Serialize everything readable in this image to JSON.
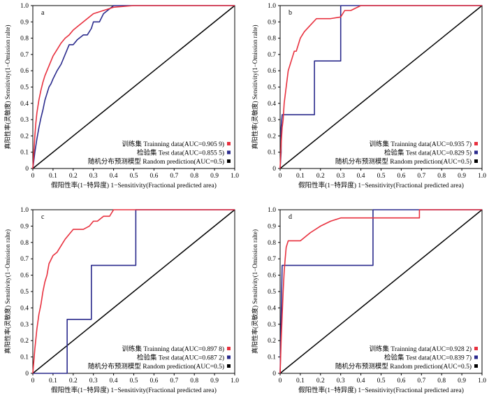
{
  "figure": {
    "ylabel": "真阳性率(灵敏度) Sensitivity(1−Omission ralte)",
    "xlabel": "假阳性率(1−特异度) 1−Sensitivity(Fractional predicted area)",
    "colors": {
      "train": "#e8303e",
      "test": "#2a2a8c",
      "random": "#000000"
    }
  },
  "chart_data": [
    {
      "type": "line",
      "panel_label": "a",
      "xlim": [
        0,
        1
      ],
      "ylim": [
        0,
        1
      ],
      "xticks": [
        "0",
        "0.1",
        "0.2",
        "0.3",
        "0.4",
        "0.5",
        "0.6",
        "0.7",
        "0.8",
        "0.9",
        "1.0"
      ],
      "yticks": [
        "0",
        "0.1",
        "0.2",
        "0.3",
        "0.4",
        "0.5",
        "0.6",
        "0.7",
        "0.8",
        "0.9",
        "1.0"
      ],
      "xlabel": "假阳性率(1−特异度) 1−Sensitivity(Fractional predicted area)",
      "ylabel": "真阳性率(灵敏度) Sensitivity(1−Omission ralte)",
      "legend_position": "bottom-right",
      "series": [
        {
          "name": "训练集 Trainning data(AUC=0.905 9)",
          "x": [
            0,
            0.005,
            0.01,
            0.015,
            0.02,
            0.03,
            0.04,
            0.05,
            0.06,
            0.08,
            0.1,
            0.12,
            0.14,
            0.16,
            0.18,
            0.2,
            0.22,
            0.25,
            0.28,
            0.3,
            0.35,
            0.4,
            0.5,
            0.7,
            1.0
          ],
          "y": [
            0,
            0.1,
            0.2,
            0.28,
            0.34,
            0.42,
            0.48,
            0.53,
            0.57,
            0.63,
            0.69,
            0.73,
            0.77,
            0.8,
            0.82,
            0.85,
            0.87,
            0.9,
            0.93,
            0.95,
            0.97,
            0.99,
            1.0,
            1.0,
            1.0
          ]
        },
        {
          "name": "检验集 Test data(AUC=0.855 5)",
          "x": [
            0,
            0.01,
            0.02,
            0.03,
            0.04,
            0.05,
            0.06,
            0.07,
            0.08,
            0.09,
            0.1,
            0.12,
            0.14,
            0.16,
            0.18,
            0.2,
            0.22,
            0.25,
            0.27,
            0.29,
            0.3,
            0.33,
            0.35,
            0.37,
            0.4,
            1.0
          ],
          "y": [
            0,
            0.1,
            0.18,
            0.25,
            0.31,
            0.36,
            0.42,
            0.46,
            0.5,
            0.52,
            0.55,
            0.6,
            0.64,
            0.7,
            0.76,
            0.76,
            0.79,
            0.82,
            0.82,
            0.86,
            0.9,
            0.9,
            0.95,
            0.97,
            1.0,
            1.0
          ]
        },
        {
          "name": "随机分布预测模型 Random prediction(AUC=0.5)",
          "x": [
            0,
            1
          ],
          "y": [
            0,
            1
          ]
        }
      ]
    },
    {
      "type": "line",
      "panel_label": "b",
      "xlim": [
        0,
        1
      ],
      "ylim": [
        0,
        1
      ],
      "xticks": [
        "0",
        "0.1",
        "0.2",
        "0.3",
        "0.4",
        "0.5",
        "0.6",
        "0.7",
        "0.8",
        "0.9",
        "1.0"
      ],
      "yticks": [
        "0",
        "0.1",
        "0.2",
        "0.3",
        "0.4",
        "0.5",
        "0.6",
        "0.7",
        "0.8",
        "0.9",
        "1.0"
      ],
      "xlabel": "假阳性率(1−特异度) 1−Sensitivity(Fractional predicted area)",
      "ylabel": "真阳性率(灵敏度) Sensitivity(1−Omission ralte)",
      "legend_position": "bottom-right",
      "series": [
        {
          "name": "训练集 Trainning data(AUC=0.935 7)",
          "x": [
            0,
            0.005,
            0.01,
            0.015,
            0.02,
            0.025,
            0.03,
            0.035,
            0.04,
            0.05,
            0.06,
            0.07,
            0.08,
            0.1,
            0.12,
            0.15,
            0.18,
            0.2,
            0.25,
            0.3,
            0.32,
            0.35,
            0.4,
            1.0
          ],
          "y": [
            0,
            0.15,
            0.25,
            0.3,
            0.4,
            0.45,
            0.5,
            0.55,
            0.6,
            0.64,
            0.68,
            0.72,
            0.72,
            0.8,
            0.84,
            0.88,
            0.92,
            0.92,
            0.92,
            0.93,
            0.97,
            0.97,
            1.0,
            1.0
          ]
        },
        {
          "name": "检验集 Test data(AUC=0.829 5)",
          "x": [
            0,
            0.005,
            0.005,
            0.01,
            0.01,
            0.17,
            0.17,
            0.3,
            0.3,
            0.4,
            1.0
          ],
          "y": [
            0,
            0.1,
            0.25,
            0.33,
            0.33,
            0.33,
            0.66,
            0.66,
            1.0,
            1.0,
            1.0
          ]
        },
        {
          "name": "随机分布预测模型 Random prediction(AUC=0.5)",
          "x": [
            0,
            1
          ],
          "y": [
            0,
            1
          ]
        }
      ]
    },
    {
      "type": "line",
      "panel_label": "c",
      "xlim": [
        0,
        1
      ],
      "ylim": [
        0,
        1
      ],
      "xticks": [
        "0",
        "0.1",
        "0.2",
        "0.3",
        "0.4",
        "0.5",
        "0.6",
        "0.7",
        "0.8",
        "0.9",
        "1.0"
      ],
      "yticks": [
        "0",
        "0.1",
        "0.2",
        "0.3",
        "0.4",
        "0.5",
        "0.6",
        "0.7",
        "0.8",
        "0.9",
        "1.0"
      ],
      "xlabel": "假阳性率(1−特异度) 1−Sensitivity(Fractional predicted area)",
      "ylabel": "真阳性率(灵敏度) Sensitivity(1−Omission ralte)",
      "legend_position": "bottom-right",
      "series": [
        {
          "name": "训练集 Trainning data(AUC=0.897 8)",
          "x": [
            0,
            0.01,
            0.02,
            0.03,
            0.04,
            0.05,
            0.06,
            0.07,
            0.08,
            0.1,
            0.12,
            0.14,
            0.16,
            0.18,
            0.2,
            0.22,
            0.25,
            0.28,
            0.3,
            0.32,
            0.35,
            0.38,
            0.4,
            0.5,
            1.0
          ],
          "y": [
            0,
            0.15,
            0.27,
            0.36,
            0.42,
            0.5,
            0.56,
            0.6,
            0.67,
            0.72,
            0.74,
            0.78,
            0.82,
            0.85,
            0.88,
            0.88,
            0.88,
            0.9,
            0.93,
            0.93,
            0.96,
            0.96,
            1.0,
            1.0,
            1.0
          ]
        },
        {
          "name": "检验集 Test data(AUC=0.687 2)",
          "x": [
            0,
            0.17,
            0.17,
            0.29,
            0.29,
            0.51,
            0.51,
            1.0
          ],
          "y": [
            0,
            0,
            0.33,
            0.33,
            0.66,
            0.66,
            1.0,
            1.0
          ]
        },
        {
          "name": "随机分布预测模型 Random prediction(AUC=0.5)",
          "x": [
            0,
            1
          ],
          "y": [
            0,
            1
          ]
        }
      ]
    },
    {
      "type": "line",
      "panel_label": "d",
      "xlim": [
        0,
        1
      ],
      "ylim": [
        0,
        1
      ],
      "xticks": [
        "0",
        "0.1",
        "0.2",
        "0.3",
        "0.4",
        "0.5",
        "0.6",
        "0.7",
        "0.8",
        "0.9",
        "1.0"
      ],
      "yticks": [
        "0",
        "0.1",
        "0.2",
        "0.3",
        "0.4",
        "0.5",
        "0.6",
        "0.7",
        "0.8",
        "0.9",
        "1.0"
      ],
      "xlabel": "假阳性率(1−特异度) 1−Sensitivity(Fractional predicted area)",
      "ylabel": "真阳性率(灵敏度) Sensitivity(1−Omission ralte)",
      "legend_position": "bottom-right",
      "series": [
        {
          "name": "训练集 Trainning data(AUC=0.928 2)",
          "x": [
            0,
            0.005,
            0.01,
            0.015,
            0.02,
            0.025,
            0.03,
            0.04,
            0.06,
            0.1,
            0.15,
            0.2,
            0.25,
            0.3,
            0.45,
            0.6,
            0.69,
            0.69,
            1.0
          ],
          "y": [
            0,
            0.2,
            0.35,
            0.5,
            0.62,
            0.7,
            0.77,
            0.81,
            0.81,
            0.81,
            0.86,
            0.9,
            0.93,
            0.95,
            0.95,
            0.95,
            0.95,
            1.0,
            1.0
          ]
        },
        {
          "name": "检验集 Test data(AUC=0.839 7)",
          "x": [
            0,
            0.005,
            0.01,
            0.01,
            0.46,
            0.46,
            1.0
          ],
          "y": [
            0,
            0.33,
            0.66,
            0.66,
            0.66,
            1.0,
            1.0
          ]
        },
        {
          "name": "随机分布预测模型 Random prediction(AUC=0.5)",
          "x": [
            0,
            1
          ],
          "y": [
            0,
            1
          ]
        }
      ]
    }
  ]
}
